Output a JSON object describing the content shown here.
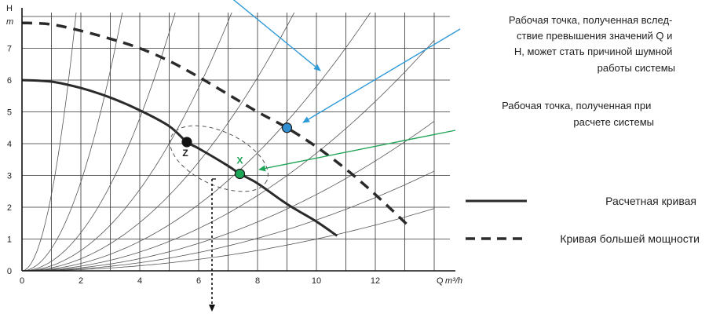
{
  "chart_data": {
    "type": "line",
    "xlabel": "Q",
    "xunit": "m³/h",
    "ylabel": "H",
    "yunit": "m",
    "xlim": [
      0,
      14
    ],
    "ylim": [
      0,
      8
    ],
    "x_ticks": [
      "0",
      "2",
      "4",
      "6",
      "8",
      "10",
      "12"
    ],
    "y_ticks": [
      "0",
      "1",
      "2",
      "3",
      "4",
      "5",
      "6",
      "7"
    ],
    "grid": true,
    "series": [
      {
        "name": "Расчетная кривая",
        "style": "solid",
        "color": "#2b2b2b",
        "x": [
          0,
          1,
          2,
          3,
          4,
          5,
          5.6,
          6,
          7,
          7.4,
          8,
          9,
          10,
          10.7
        ],
        "y": [
          6.0,
          5.95,
          5.75,
          5.45,
          5.05,
          4.55,
          4.05,
          3.85,
          3.3,
          3.05,
          2.75,
          2.1,
          1.55,
          1.1
        ]
      },
      {
        "name": "Кривая большей мощности",
        "style": "dashed",
        "color": "#2b2b2b",
        "x": [
          0,
          1,
          2,
          3,
          4,
          5,
          6,
          7,
          8,
          9,
          10,
          11,
          12,
          13.2
        ],
        "y": [
          7.8,
          7.75,
          7.55,
          7.3,
          7.0,
          6.6,
          6.1,
          5.55,
          5.0,
          4.5,
          3.9,
          3.2,
          2.4,
          1.35
        ]
      }
    ],
    "system_curves": [
      {
        "k": 2.4
      },
      {
        "k": 0.7
      },
      {
        "k": 0.3
      },
      {
        "k": 0.16
      },
      {
        "k": 0.095
      },
      {
        "k": 0.058
      },
      {
        "k": 0.037
      },
      {
        "k": 0.024
      },
      {
        "k": 0.016
      },
      {
        "k": 0.01
      }
    ],
    "points": [
      {
        "label": "Z",
        "x": 5.6,
        "y": 4.05,
        "color": "#111111"
      },
      {
        "label": "X",
        "x": 7.4,
        "y": 3.05,
        "color": "#1fa557"
      },
      {
        "label": "",
        "x": 9.0,
        "y": 4.5,
        "color": "#2f8fd0"
      }
    ]
  },
  "annotations": {
    "noise_point_lines": [
      "Рабочая точка, полученная вслед-",
      "ствие превышения значений Q и",
      "H, может стать причиной шумной",
      "работы системы"
    ],
    "design_point_lines": [
      "Рабочая точка, полученная при",
      "расчете системы"
    ],
    "noise_arrow_color": "#2f9ad8",
    "design_arrow_color": "#1fa557"
  },
  "legend": {
    "solid_label": "Расчетная кривая",
    "dashed_label": "Кривая большей мощности"
  }
}
